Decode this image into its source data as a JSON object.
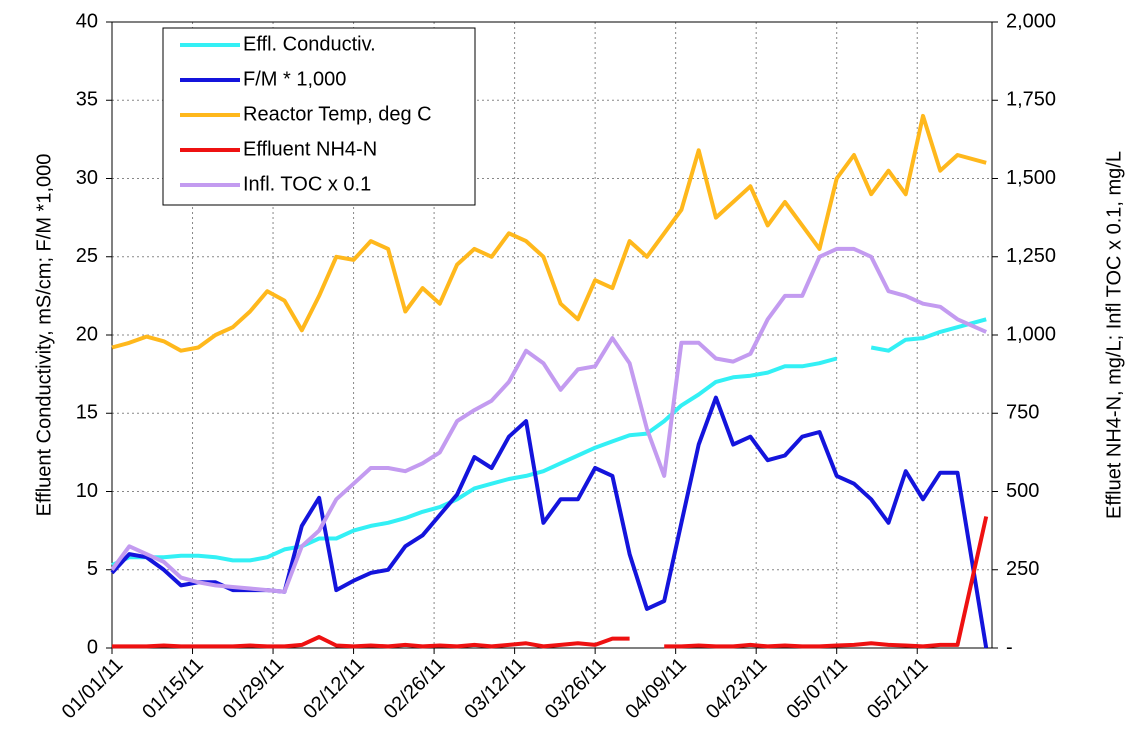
{
  "chart_data": {
    "type": "line",
    "y_label": "Effluent Conductivity, mS/cm;  F/M *1,000",
    "y2_label": "Effluet NH4-N, mg/L;  Infl TOC x 0.1, mg/L",
    "x": [
      "01/01/11",
      "01/04/11",
      "01/07/11",
      "01/10/11",
      "01/13/11",
      "01/16/11",
      "01/19/11",
      "01/22/11",
      "01/25/11",
      "01/28/11",
      "01/31/11",
      "02/03/11",
      "02/06/11",
      "02/09/11",
      "02/12/11",
      "02/15/11",
      "02/18/11",
      "02/21/11",
      "02/24/11",
      "02/27/11",
      "03/02/11",
      "03/05/11",
      "03/08/11",
      "03/11/11",
      "03/14/11",
      "03/17/11",
      "03/20/11",
      "03/23/11",
      "03/26/11",
      "03/29/11",
      "04/01/11",
      "04/04/11",
      "04/07/11",
      "04/10/11",
      "04/13/11",
      "04/16/11",
      "04/19/11",
      "04/22/11",
      "04/25/11",
      "04/28/11",
      "05/01/11",
      "05/04/11",
      "05/07/11",
      "05/10/11",
      "05/13/11",
      "05/16/11",
      "05/19/11",
      "05/22/11",
      "05/25/11",
      "05/28/11",
      "06/02/11"
    ],
    "xlim": [
      "01/01/11",
      "06/03/11"
    ],
    "xticks": [
      "01/01/11",
      "01/15/11",
      "01/29/11",
      "02/12/11",
      "02/26/11",
      "03/12/11",
      "03/26/11",
      "04/09/11",
      "04/23/11",
      "05/07/11",
      "05/21/11"
    ],
    "ylim": [
      0,
      40
    ],
    "yticks": [
      0,
      5,
      10,
      15,
      20,
      25,
      30,
      35,
      40
    ],
    "y2lim": [
      0,
      2000
    ],
    "y2ticks": [
      {
        "value": 0,
        "label": "-"
      },
      250,
      500,
      750,
      {
        "value": 1000,
        "label": "1,000"
      },
      {
        "value": 1250,
        "label": "1,250"
      },
      {
        "value": 1500,
        "label": "1,500"
      },
      {
        "value": 1750,
        "label": "1,750"
      },
      {
        "value": 2000,
        "label": "2,000"
      }
    ],
    "grid": true,
    "legend": "upper left",
    "series": [
      {
        "name": "Effl. Conductiv.",
        "color": "#33f0f5",
        "values": [
          5.3,
          5.8,
          5.8,
          5.8,
          5.9,
          5.9,
          5.8,
          5.6,
          5.6,
          5.8,
          6.3,
          6.5,
          7.0,
          7.0,
          7.5,
          7.8,
          8.0,
          8.3,
          8.7,
          9.0,
          9.5,
          10.2,
          10.5,
          10.8,
          11.0,
          11.3,
          11.8,
          12.3,
          12.8,
          13.2,
          13.6,
          13.7,
          14.5,
          15.5,
          16.2,
          17.0,
          17.3,
          17.4,
          17.6,
          18.0,
          18.0,
          18.2,
          18.5,
          null,
          19.2,
          19.0,
          19.7,
          19.8,
          20.2,
          20.5,
          21.0
        ]
      },
      {
        "name": "F/M * 1,000",
        "color": "#1414dc",
        "values": [
          4.8,
          6.0,
          5.8,
          5.0,
          4.0,
          4.2,
          4.2,
          3.7,
          3.7,
          3.7,
          3.6,
          7.8,
          9.6,
          3.7,
          4.3,
          4.8,
          5.0,
          6.5,
          7.2,
          8.5,
          9.8,
          12.2,
          11.5,
          13.5,
          14.5,
          8.0,
          9.5,
          9.5,
          11.5,
          11.0,
          6.0,
          2.5,
          3.0,
          8.0,
          13.0,
          16.0,
          13.0,
          13.5,
          12.0,
          12.3,
          13.5,
          13.8,
          11.0,
          10.5,
          9.5,
          8.0,
          11.3,
          9.5,
          11.2,
          11.2,
          0
        ]
      },
      {
        "name": "Reactor Temp, deg C",
        "color": "#ffb81c",
        "values": [
          19.2,
          19.5,
          19.9,
          19.6,
          19.0,
          19.2,
          20.0,
          20.5,
          21.5,
          22.8,
          22.2,
          20.3,
          22.5,
          25.0,
          24.8,
          26.0,
          25.5,
          21.5,
          23.0,
          22.0,
          24.5,
          25.5,
          25.0,
          26.5,
          26.0,
          25.0,
          22.0,
          21.0,
          23.5,
          23.0,
          26.0,
          25.0,
          26.5,
          28.0,
          31.8,
          27.5,
          28.5,
          29.5,
          27.0,
          28.5,
          27.0,
          25.5,
          30.0,
          31.5,
          29.0,
          30.5,
          29.0,
          34.0,
          30.5,
          31.5,
          31.0
        ]
      },
      {
        "name": "Effluent NH4-N",
        "color": "#ee1111",
        "axis": "y2",
        "values": [
          5,
          5,
          5,
          8,
          5,
          5,
          5,
          5,
          8,
          5,
          5,
          10,
          35,
          8,
          5,
          8,
          5,
          10,
          5,
          8,
          5,
          10,
          5,
          10,
          15,
          5,
          10,
          15,
          10,
          30,
          30,
          null,
          5,
          5,
          8,
          5,
          5,
          10,
          5,
          8,
          5,
          5,
          8,
          10,
          15,
          10,
          8,
          5,
          10,
          10,
          420
        ]
      },
      {
        "name": "Infl. TOC x 0.1",
        "color": "#c39bf0",
        "axis": "y2",
        "values": [
          250,
          325,
          300,
          275,
          225,
          210,
          200,
          195,
          190,
          185,
          180,
          325,
          375,
          475,
          525,
          575,
          575,
          565,
          590,
          625,
          725,
          760,
          790,
          850,
          950,
          910,
          825,
          890,
          900,
          990,
          910,
          700,
          550,
          975,
          975,
          925,
          915,
          940,
          1050,
          1125,
          1125,
          1250,
          1275,
          1275,
          1250,
          1140,
          1125,
          1100,
          1090,
          1050,
          1010
        ]
      }
    ]
  }
}
